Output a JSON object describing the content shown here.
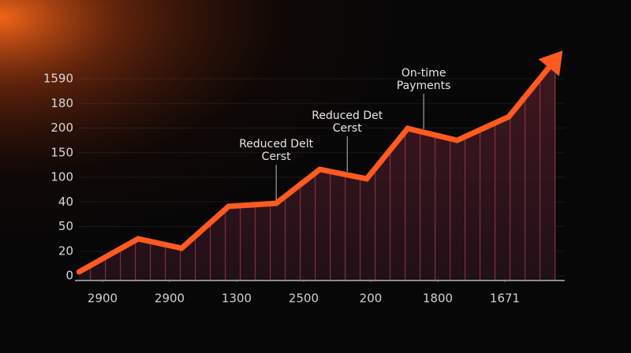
{
  "chart_data": {
    "type": "line",
    "x": [
      -0.35,
      0.53,
      1.18,
      1.88,
      2.59,
      3.24,
      3.94,
      4.55,
      5.29,
      6.06,
      6.76
    ],
    "series": [
      {
        "color": "#ff5a1f",
        "values": [
          0.16,
          1.5,
          1.12,
          2.82,
          2.94,
          4.32,
          3.94,
          5.98,
          5.5,
          6.46,
          8.8
        ]
      }
    ],
    "xlim": [
      -0.4,
      6.9
    ],
    "xticks": [
      {
        "value": 0,
        "label": "2900"
      },
      {
        "value": 1,
        "label": "2900"
      },
      {
        "value": 2,
        "label": "1300"
      },
      {
        "value": 3,
        "label": "2500"
      },
      {
        "value": 4,
        "label": "200"
      },
      {
        "value": 5,
        "label": "1800"
      },
      {
        "value": 6,
        "label": "1671"
      }
    ],
    "ylim": [
      0,
      9
    ],
    "yticks": [
      {
        "value": 0,
        "label": "0"
      },
      {
        "value": 1,
        "label": "20"
      },
      {
        "value": 2,
        "label": "50"
      },
      {
        "value": 3,
        "label": "40"
      },
      {
        "value": 4,
        "label": "100"
      },
      {
        "value": 5,
        "label": "150"
      },
      {
        "value": 6,
        "label": "200"
      },
      {
        "value": 7,
        "label": "180"
      },
      {
        "value": 8,
        "label": "1590"
      }
    ],
    "grid": true,
    "annotations": [
      {
        "lines": [
          "Reduced Delt",
          "Cerst"
        ],
        "x": 2.59
      },
      {
        "lines": [
          "Reduced Det",
          "Cerst"
        ],
        "x": 3.65
      },
      {
        "lines": [
          "On-time",
          "Payments"
        ],
        "x": 4.79
      }
    ]
  }
}
